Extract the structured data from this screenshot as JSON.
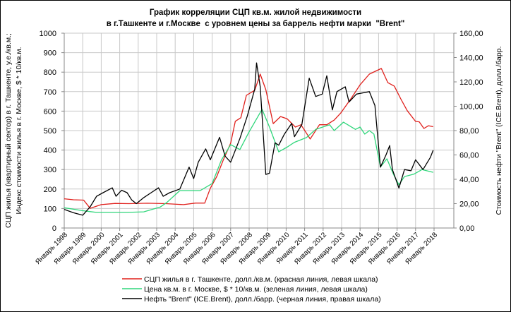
{
  "chart_data": {
    "type": "line",
    "title": [
      "График корреляции СЦП кв.м. жилой недвижимости",
      "в г.Ташкенте и г.Москве  с уровнем цены за баррель нефти марки  \"Brent\""
    ],
    "ylabel": [
      "СЦП жилья (квартирный сектор) в г. Ташкенте, у.е./кв.м.;",
      "Индекс стоимости жилья в г. Москве, $ * 10/кв.м."
    ],
    "y2label": "Стоимость нефти \"Brent\" (ICE.Brent), долл./барр.",
    "ylim": [
      0,
      1000
    ],
    "y2lim": [
      0,
      160
    ],
    "yticks": [
      "0",
      "100",
      "200",
      "300",
      "400",
      "500",
      "600",
      "700",
      "800",
      "900",
      "1000"
    ],
    "y2ticks": [
      "0,00",
      "20,00",
      "40,00",
      "60,00",
      "80,00",
      "100,00",
      "120,00",
      "140,00",
      "160,00"
    ],
    "xlim": [
      1998,
      2019.1
    ],
    "xticks": [
      "Январь 1998",
      "Январь 1999",
      "Январь 2000",
      "Январь 2001",
      "Январь 2002",
      "Январь 2003",
      "Январь 2004",
      "Январь 2005",
      "Январь 2006",
      "Январь 2007",
      "Январь 2008",
      "Январь 2009",
      "Январь 2010",
      "Январь 2011",
      "Январь 2012",
      "Январь 2013",
      "Январь 2014",
      "Январь 2015",
      "Январь 2016",
      "Январь 2017",
      "Январь 2018"
    ],
    "grid": true,
    "legend_position": "bottom",
    "series": [
      {
        "name": "СЦП жилья в г. Ташкенте, долл./кв.м. (красная линия, левая шкала)",
        "axis": "left",
        "color": "#e0201c",
        "points": [
          [
            1998.0,
            150
          ],
          [
            1998.5,
            145
          ],
          [
            1999.05,
            143
          ],
          [
            1999.4,
            101
          ],
          [
            2000.0,
            120
          ],
          [
            2000.75,
            126
          ],
          [
            2001.5,
            125
          ],
          [
            2002.5,
            127
          ],
          [
            2003.5,
            125
          ],
          [
            2004.45,
            120
          ],
          [
            2005.1,
            128
          ],
          [
            2005.6,
            128
          ],
          [
            2005.9,
            204
          ],
          [
            2006.25,
            264
          ],
          [
            2006.6,
            349
          ],
          [
            2007.0,
            435
          ],
          [
            2007.25,
            548
          ],
          [
            2007.55,
            566
          ],
          [
            2007.85,
            681
          ],
          [
            2008.3,
            707
          ],
          [
            2008.6,
            790
          ],
          [
            2008.9,
            710
          ],
          [
            2009.3,
            536
          ],
          [
            2009.7,
            572
          ],
          [
            2010.05,
            561
          ],
          [
            2010.5,
            518
          ],
          [
            2010.8,
            530
          ],
          [
            2011.3,
            457
          ],
          [
            2011.8,
            530
          ],
          [
            2012.2,
            530
          ],
          [
            2012.6,
            554
          ],
          [
            2012.95,
            590
          ],
          [
            2013.5,
            663
          ],
          [
            2014.0,
            735
          ],
          [
            2014.5,
            790
          ],
          [
            2014.9,
            808
          ],
          [
            2015.15,
            819
          ],
          [
            2015.5,
            746
          ],
          [
            2015.85,
            728
          ],
          [
            2016.2,
            663
          ],
          [
            2016.55,
            602
          ],
          [
            2017.0,
            547
          ],
          [
            2017.2,
            545
          ],
          [
            2017.45,
            511
          ],
          [
            2017.7,
            525
          ],
          [
            2017.95,
            520
          ]
        ]
      },
      {
        "name": "Цена кв.м. в г. Москве, $ * 10/кв.м. (зеленая линия, левая шкала)",
        "axis": "left",
        "color": "#2fd67a",
        "points": [
          [
            1998.0,
            104
          ],
          [
            1998.98,
            89
          ],
          [
            1999.75,
            80
          ],
          [
            2001.4,
            80
          ],
          [
            2002.3,
            83
          ],
          [
            2003.2,
            108
          ],
          [
            2003.55,
            131
          ],
          [
            2004.25,
            192
          ],
          [
            2005.35,
            192
          ],
          [
            2006.0,
            228
          ],
          [
            2006.5,
            349
          ],
          [
            2007.0,
            428
          ],
          [
            2007.5,
            403
          ],
          [
            2008.0,
            494
          ],
          [
            2008.7,
            609
          ],
          [
            2009.1,
            518
          ],
          [
            2009.6,
            391
          ],
          [
            2010.05,
            415
          ],
          [
            2010.45,
            440
          ],
          [
            2011.1,
            464
          ],
          [
            2011.6,
            506
          ],
          [
            2012.35,
            530
          ],
          [
            2012.6,
            500
          ],
          [
            2013.1,
            543
          ],
          [
            2013.75,
            506
          ],
          [
            2014.0,
            518
          ],
          [
            2014.25,
            482
          ],
          [
            2014.5,
            500
          ],
          [
            2014.75,
            482
          ],
          [
            2015.1,
            313
          ],
          [
            2015.45,
            355
          ],
          [
            2015.8,
            276
          ],
          [
            2016.1,
            222
          ],
          [
            2016.4,
            264
          ],
          [
            2016.9,
            276
          ],
          [
            2017.35,
            300
          ],
          [
            2017.95,
            286
          ]
        ]
      },
      {
        "name": "Нефть \"Brent\" (ICE.Brent), долл./барр. (черная линия, правая шкала)",
        "axis": "right",
        "color": "#000000",
        "points": [
          [
            1998.0,
            15.3
          ],
          [
            1998.5,
            12.5
          ],
          [
            1999.0,
            10.5
          ],
          [
            1999.4,
            17.4
          ],
          [
            1999.75,
            26
          ],
          [
            2000.1,
            29
          ],
          [
            2000.6,
            33
          ],
          [
            2000.8,
            26
          ],
          [
            2001.1,
            31
          ],
          [
            2001.4,
            29
          ],
          [
            2001.65,
            23
          ],
          [
            2001.9,
            20
          ],
          [
            2002.3,
            25
          ],
          [
            2002.7,
            29
          ],
          [
            2003.1,
            33
          ],
          [
            2003.35,
            26
          ],
          [
            2003.7,
            29
          ],
          [
            2004.25,
            32
          ],
          [
            2004.75,
            50
          ],
          [
            2005.0,
            40.6
          ],
          [
            2005.25,
            54
          ],
          [
            2005.65,
            65
          ],
          [
            2005.9,
            56
          ],
          [
            2006.4,
            74.5
          ],
          [
            2006.7,
            59
          ],
          [
            2007.0,
            54
          ],
          [
            2007.5,
            73.5
          ],
          [
            2007.9,
            92
          ],
          [
            2008.3,
            114
          ],
          [
            2008.4,
            135.6
          ],
          [
            2008.6,
            116
          ],
          [
            2008.9,
            44
          ],
          [
            2009.1,
            45
          ],
          [
            2009.4,
            70
          ],
          [
            2009.6,
            68
          ],
          [
            2009.9,
            77
          ],
          [
            2010.3,
            86
          ],
          [
            2010.45,
            75
          ],
          [
            2010.85,
            85
          ],
          [
            2011.25,
            123
          ],
          [
            2011.6,
            108
          ],
          [
            2011.95,
            110
          ],
          [
            2012.2,
            125
          ],
          [
            2012.5,
            97
          ],
          [
            2012.75,
            112
          ],
          [
            2013.2,
            116
          ],
          [
            2013.4,
            103.5
          ],
          [
            2013.8,
            110
          ],
          [
            2014.5,
            112
          ],
          [
            2014.8,
            100.6
          ],
          [
            2015.1,
            50
          ],
          [
            2015.4,
            60
          ],
          [
            2015.6,
            67.7
          ],
          [
            2015.75,
            48
          ],
          [
            2016.1,
            32.8
          ],
          [
            2016.4,
            48
          ],
          [
            2016.75,
            47
          ],
          [
            2017.0,
            56
          ],
          [
            2017.4,
            48
          ],
          [
            2017.8,
            58
          ],
          [
            2017.95,
            63.8
          ]
        ]
      }
    ]
  }
}
